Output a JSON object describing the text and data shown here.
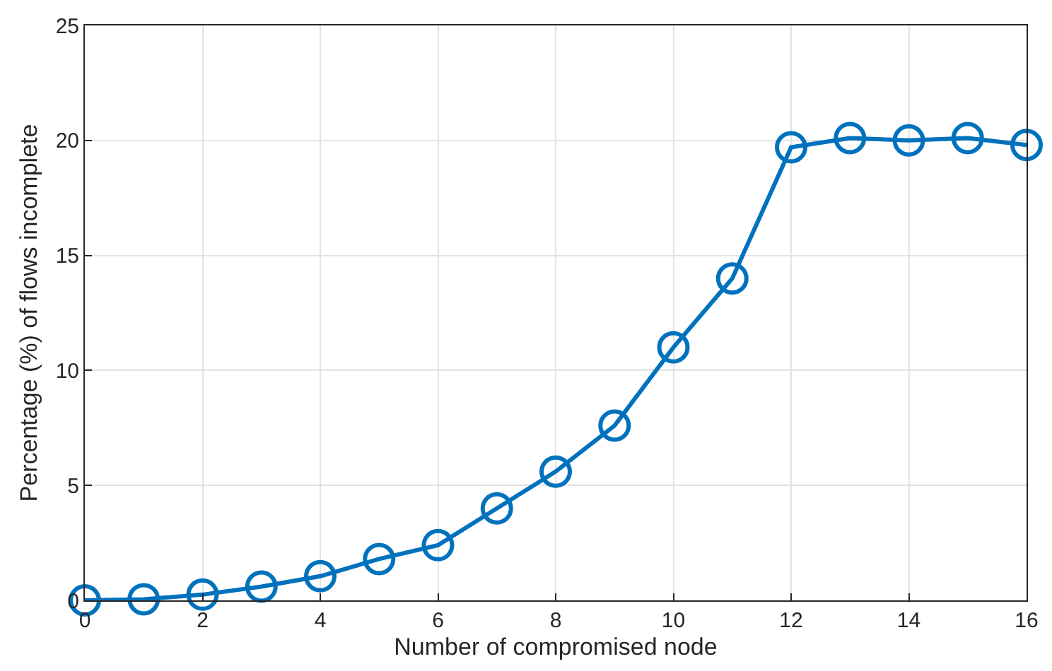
{
  "chart_data": {
    "type": "line",
    "xlabel": "Number of compromised node",
    "ylabel": "Percentage (%) of flows incomplete",
    "x": [
      0,
      1,
      2,
      3,
      4,
      5,
      6,
      7,
      8,
      9,
      10,
      11,
      12,
      13,
      14,
      15,
      16
    ],
    "series": [
      {
        "color": "#0072bd",
        "values": [
          0,
          0.05,
          0.25,
          0.6,
          1.05,
          1.8,
          2.4,
          4.0,
          5.6,
          7.6,
          11.0,
          14.0,
          19.7,
          20.1,
          20.0,
          20.1,
          19.8
        ]
      }
    ],
    "xlim": [
      0,
      16
    ],
    "xticks": [
      0,
      2,
      4,
      6,
      8,
      10,
      12,
      14,
      16
    ],
    "ylim": [
      0,
      25
    ],
    "yticks": [
      0,
      5,
      10,
      15,
      20,
      25
    ],
    "grid": true,
    "marker": "circle",
    "line_style": "solid"
  }
}
